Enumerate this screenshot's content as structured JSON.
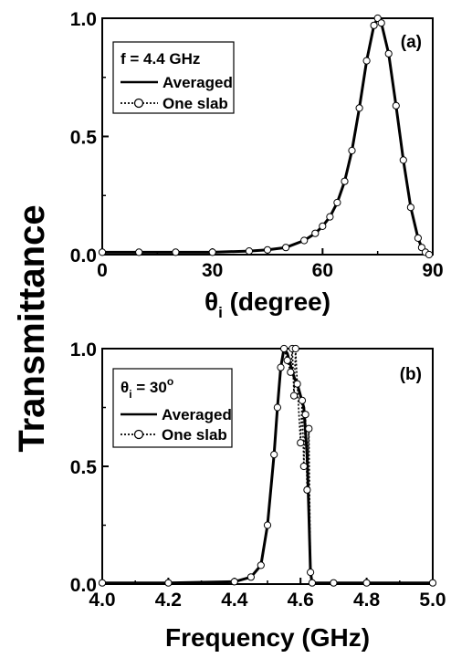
{
  "ylabel": "Transmittance",
  "chart_data": [
    {
      "type": "line",
      "panel_label": "(a)",
      "xlabel_main": "θ",
      "xlabel_sub": "i",
      "xlabel_rest": " (degree)",
      "xlim": [
        0,
        90
      ],
      "ylim": [
        0,
        1.0
      ],
      "xticks": [
        "0",
        "30",
        "60",
        "90"
      ],
      "yticks": [
        "0.0",
        "0.5",
        "1.0"
      ],
      "legend": {
        "title": "f = 4.4 GHz",
        "entries": [
          "Averaged",
          "One slab"
        ],
        "placement": "top-left"
      },
      "series": [
        {
          "name": "Averaged",
          "style": "solid",
          "x": [
            0,
            10,
            20,
            30,
            40,
            45,
            50,
            55,
            58,
            60,
            62,
            64,
            66,
            68,
            70,
            72,
            74,
            75,
            76,
            78,
            80,
            82,
            84,
            86,
            87,
            88,
            89
          ],
          "y": [
            0.01,
            0.01,
            0.01,
            0.01,
            0.015,
            0.02,
            0.03,
            0.06,
            0.09,
            0.12,
            0.16,
            0.22,
            0.31,
            0.44,
            0.62,
            0.82,
            0.97,
            1.0,
            0.98,
            0.85,
            0.63,
            0.4,
            0.2,
            0.07,
            0.03,
            0.01,
            0.0
          ]
        },
        {
          "name": "One slab",
          "style": "dotted-circles",
          "x": [
            0,
            10,
            20,
            30,
            40,
            45,
            50,
            55,
            58,
            60,
            62,
            64,
            66,
            68,
            70,
            72,
            74,
            75,
            76,
            78,
            80,
            82,
            84,
            86,
            87,
            88,
            89
          ],
          "y": [
            0.01,
            0.01,
            0.01,
            0.01,
            0.015,
            0.02,
            0.03,
            0.06,
            0.09,
            0.12,
            0.16,
            0.22,
            0.31,
            0.44,
            0.62,
            0.82,
            0.97,
            1.0,
            0.98,
            0.85,
            0.63,
            0.4,
            0.2,
            0.07,
            0.03,
            0.01,
            0.0
          ]
        }
      ]
    },
    {
      "type": "line",
      "panel_label": "(b)",
      "xlabel": "Frequency (GHz)",
      "xlim": [
        4.0,
        5.0
      ],
      "ylim": [
        0,
        1.0
      ],
      "xticks": [
        "4.0",
        "4.2",
        "4.4",
        "4.6",
        "4.8",
        "5.0"
      ],
      "yticks": [
        "0.0",
        "0.5",
        "1.0"
      ],
      "legend": {
        "title_main": "θ",
        "title_sub": "i",
        "title_rest": " = 30",
        "title_sup": "o",
        "entries": [
          "Averaged",
          "One slab"
        ],
        "placement": "top-left"
      },
      "series": [
        {
          "name": "Averaged",
          "style": "solid",
          "x": [
            4.0,
            4.2,
            4.4,
            4.45,
            4.48,
            4.5,
            4.52,
            4.53,
            4.54,
            4.55,
            4.56,
            4.57,
            4.58,
            4.59,
            4.6,
            4.61,
            4.62,
            4.625,
            4.63,
            4.635,
            4.7,
            4.8,
            5.0
          ],
          "y": [
            0.005,
            0.005,
            0.01,
            0.03,
            0.08,
            0.25,
            0.55,
            0.75,
            0.92,
            1.0,
            0.98,
            0.93,
            0.88,
            0.85,
            0.8,
            0.75,
            0.55,
            0.3,
            0.05,
            0.005,
            0.005,
            0.005,
            0.005
          ]
        },
        {
          "name": "One slab",
          "style": "dotted-circles",
          "x": [
            4.0,
            4.2,
            4.4,
            4.45,
            4.48,
            4.5,
            4.52,
            4.53,
            4.54,
            4.55,
            4.56,
            4.57,
            4.575,
            4.58,
            4.585,
            4.59,
            4.6,
            4.605,
            4.61,
            4.615,
            4.62,
            4.625,
            4.63,
            4.635,
            4.7,
            4.8,
            5.0
          ],
          "y": [
            0.005,
            0.005,
            0.01,
            0.03,
            0.08,
            0.25,
            0.55,
            0.75,
            0.92,
            1.0,
            0.95,
            0.9,
            1.0,
            0.8,
            1.0,
            0.85,
            0.6,
            0.78,
            0.5,
            0.72,
            0.4,
            0.66,
            0.05,
            0.005,
            0.005,
            0.005,
            0.005
          ]
        }
      ]
    }
  ]
}
